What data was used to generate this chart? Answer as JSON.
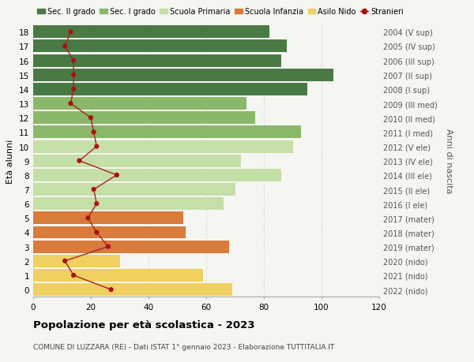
{
  "ages": [
    18,
    17,
    16,
    15,
    14,
    13,
    12,
    11,
    10,
    9,
    8,
    7,
    6,
    5,
    4,
    3,
    2,
    1,
    0
  ],
  "right_labels": [
    "2004 (V sup)",
    "2005 (IV sup)",
    "2006 (III sup)",
    "2007 (II sup)",
    "2008 (I sup)",
    "2009 (III med)",
    "2010 (II med)",
    "2011 (I med)",
    "2012 (V ele)",
    "2013 (IV ele)",
    "2014 (III ele)",
    "2015 (II ele)",
    "2016 (I ele)",
    "2017 (mater)",
    "2018 (mater)",
    "2019 (mater)",
    "2020 (nido)",
    "2021 (nido)",
    "2022 (nido)"
  ],
  "bar_values": [
    82,
    88,
    86,
    104,
    95,
    74,
    77,
    93,
    90,
    72,
    86,
    70,
    66,
    52,
    53,
    68,
    30,
    59,
    69
  ],
  "bar_colors": [
    "#4a7a44",
    "#4a7a44",
    "#4a7a44",
    "#4a7a44",
    "#4a7a44",
    "#8ab86a",
    "#8ab86a",
    "#8ab86a",
    "#c5dfa8",
    "#c5dfa8",
    "#c5dfa8",
    "#c5dfa8",
    "#c5dfa8",
    "#d97b3a",
    "#d97b3a",
    "#d97b3a",
    "#f0d060",
    "#f0d060",
    "#f0d060"
  ],
  "stranieri_values": [
    13,
    11,
    14,
    14,
    14,
    13,
    20,
    21,
    22,
    16,
    29,
    21,
    22,
    19,
    22,
    26,
    11,
    14,
    27
  ],
  "legend_labels": [
    "Sec. II grado",
    "Sec. I grado",
    "Scuola Primaria",
    "Scuola Infanzia",
    "Asilo Nido",
    "Stranieri"
  ],
  "legend_colors": [
    "#4a7a44",
    "#8ab86a",
    "#c5dfa8",
    "#d97b3a",
    "#f0d060",
    "#cc2222"
  ],
  "ylabel_left": "Età alunni",
  "ylabel_right": "Anni di nascita",
  "title": "Popolazione per età scolastica - 2023",
  "subtitle": "COMUNE DI LUZZARA (RE) - Dati ISTAT 1° gennaio 2023 - Elaborazione TUTTITALIA.IT",
  "xlim": [
    0,
    120
  ],
  "background_color": "#f5f5f2",
  "grid_color": "#cccccc",
  "stranieri_color": "#aa1111",
  "stranieri_line_color": "#aa2222"
}
